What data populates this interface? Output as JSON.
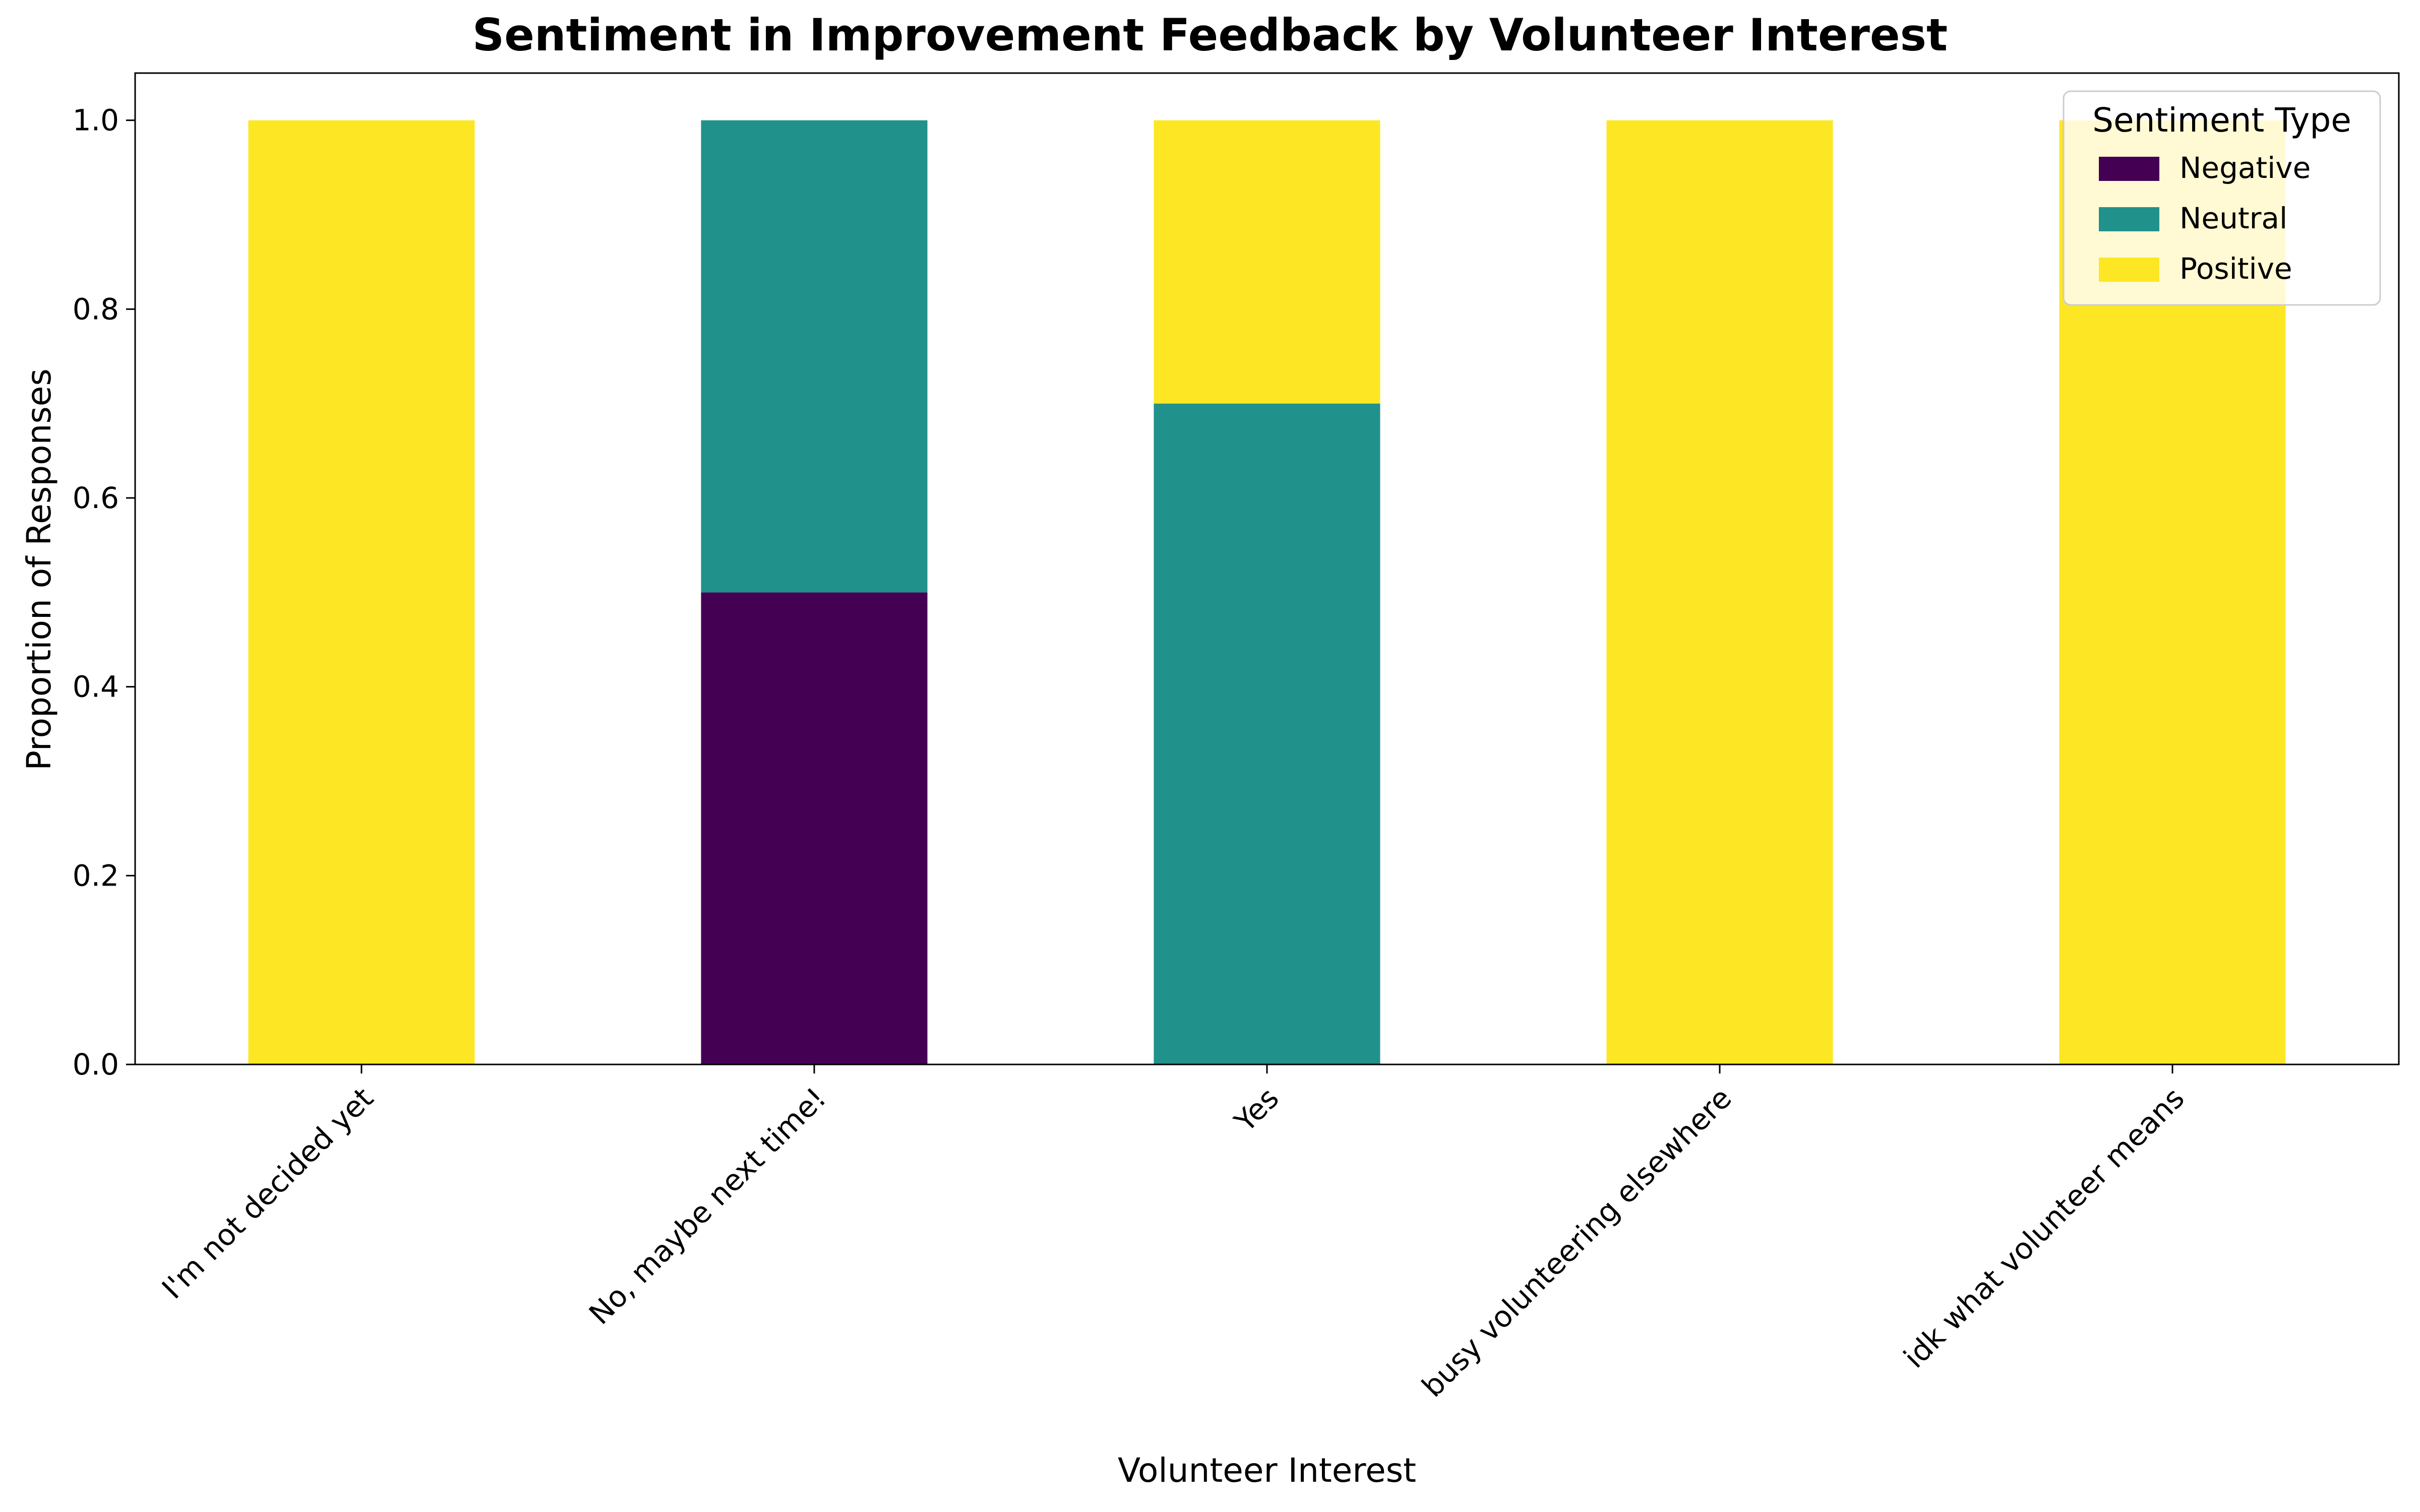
{
  "chart_data": {
    "type": "bar",
    "stacked": true,
    "title": "Sentiment in Improvement Feedback by Volunteer Interest",
    "xlabel": "Volunteer Interest",
    "ylabel": "Proportion of Responses",
    "ylim": [
      0,
      1.05
    ],
    "yticks": [
      "0.0",
      "0.2",
      "0.4",
      "0.6",
      "0.8",
      "1.0"
    ],
    "grid": false,
    "categories": [
      "I'm not decided yet",
      "No, maybe next time!",
      "Yes",
      "busy volunteering elsewhere",
      "idk what volunteer means"
    ],
    "series": [
      {
        "name": "Negative",
        "color": "#440154",
        "values": [
          0,
          0.5,
          0,
          0,
          0
        ]
      },
      {
        "name": "Neutral",
        "color": "#21918c",
        "values": [
          0,
          0.5,
          0.7,
          0,
          0
        ]
      },
      {
        "name": "Positive",
        "color": "#fde725",
        "values": [
          1,
          0,
          0.3,
          1,
          1
        ]
      }
    ],
    "legend": {
      "title": "Sentiment Type",
      "position": "top-right"
    }
  }
}
